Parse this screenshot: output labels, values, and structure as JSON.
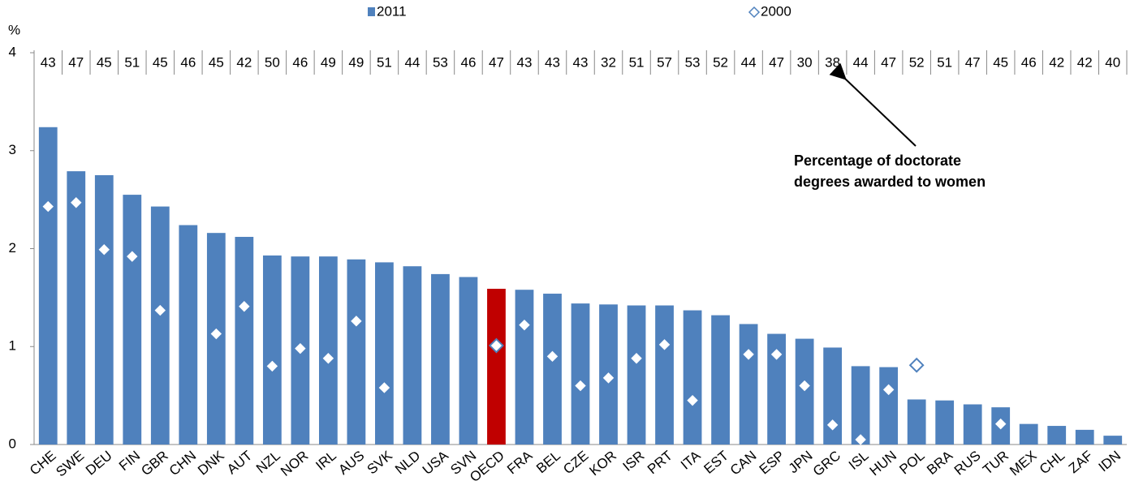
{
  "chart_data": {
    "type": "bar",
    "y_label": "%",
    "categories": [
      "CHE",
      "SWE",
      "DEU",
      "FIN",
      "GBR",
      "CHN",
      "DNK",
      "AUT",
      "NZL",
      "NOR",
      "IRL",
      "AUS",
      "SVK",
      "NLD",
      "USA",
      "SVN",
      "OECD",
      "FRA",
      "BEL",
      "CZE",
      "KOR",
      "ISR",
      "PRT",
      "ITA",
      "EST",
      "CAN",
      "ESP",
      "JPN",
      "GRC",
      "ISL",
      "HUN",
      "POL",
      "BRA",
      "RUS",
      "TUR",
      "MEX",
      "CHL",
      "ZAF",
      "IDN"
    ],
    "series": [
      {
        "name": "2011",
        "color": "#4f81bd",
        "values": [
          3.24,
          2.79,
          2.75,
          2.55,
          2.43,
          2.24,
          2.16,
          2.12,
          1.93,
          1.92,
          1.92,
          1.89,
          1.86,
          1.82,
          1.74,
          1.71,
          1.59,
          1.58,
          1.54,
          1.44,
          1.43,
          1.42,
          1.42,
          1.37,
          1.32,
          1.23,
          1.13,
          1.08,
          0.99,
          0.8,
          0.79,
          0.46,
          0.45,
          0.41,
          0.38,
          0.21,
          0.19,
          0.15,
          0.09
        ]
      },
      {
        "name": "2000",
        "color": "#4f81bd",
        "marker": "diamond",
        "values": [
          2.43,
          2.47,
          1.99,
          1.92,
          1.37,
          null,
          1.13,
          1.41,
          0.8,
          0.98,
          0.88,
          1.26,
          0.58,
          null,
          null,
          null,
          1.01,
          1.22,
          0.9,
          0.6,
          0.68,
          0.88,
          1.02,
          0.45,
          null,
          0.92,
          0.92,
          0.6,
          0.2,
          0.05,
          0.56,
          0.81,
          null,
          null,
          0.21,
          null,
          null,
          null,
          null
        ]
      }
    ],
    "highlight": "OECD",
    "highlight_color": "#c00000",
    "top_labels": [
      43,
      47,
      45,
      51,
      45,
      46,
      45,
      42,
      50,
      46,
      49,
      49,
      51,
      44,
      53,
      46,
      47,
      43,
      43,
      43,
      32,
      51,
      57,
      53,
      52,
      44,
      47,
      30,
      38,
      44,
      47,
      52,
      51,
      47,
      45,
      46,
      42,
      42,
      40
    ],
    "annotation": [
      "Percentage of doctorate",
      "degrees  awarded to women"
    ],
    "ylim": [
      0,
      4
    ],
    "yticks": [
      0,
      1,
      2,
      3,
      4
    ]
  }
}
